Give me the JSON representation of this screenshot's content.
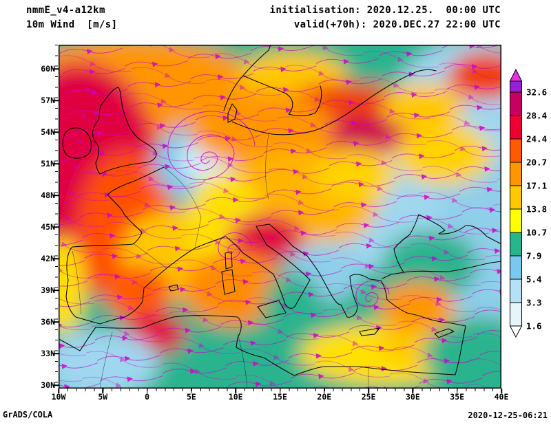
{
  "header": {
    "model": "nmmE_v4-a12km",
    "field": "10m Wind  [m/s]",
    "init": "initialisation: 2020.12.25.  00:00 UTC",
    "valid": "valid(+70h): 2020.DEC.27 22:00 UTC"
  },
  "footer": {
    "left": "GrADS/COLA",
    "right": "2020-12-25-06:21"
  },
  "axes": {
    "lat_labels": [
      "60N",
      "57N",
      "54N",
      "51N",
      "48N",
      "45N",
      "42N",
      "39N",
      "36N",
      "33N",
      "30N"
    ],
    "lon_labels": [
      "10W",
      "5W",
      "0",
      "5E",
      "10E",
      "15E",
      "20E",
      "25E",
      "30E",
      "35E",
      "40E"
    ]
  },
  "colorbar": {
    "labels": [
      "32.6",
      "28.4",
      "24.4",
      "20.7",
      "17.1",
      "13.8",
      "10.7",
      "7.9",
      "5.4",
      "3.3",
      "1.6"
    ],
    "arrow_top_color": "#e632e6",
    "segment_colors": [
      "#961edc",
      "#c80064",
      "#f00032",
      "#ff5a00",
      "#ff9600",
      "#ffc800",
      "#ffff00",
      "#28b48c",
      "#78c8f0",
      "#b4e1f5",
      "#e6f5fb"
    ],
    "arrow_bottom_color": "#ffffff"
  },
  "chart_data": {
    "type": "heatmap",
    "title": "10m Wind [m/s]",
    "model": "nmmE_v4-a12km",
    "initialisation": "2020.12.25. 00:00 UTC",
    "valid": "2020.DEC.27 22:00 UTC",
    "forecast_hour": "+70h",
    "units": "m/s",
    "lon_range": [
      -10,
      40
    ],
    "lat_range": [
      30,
      62.5
    ],
    "lon_ticks": [
      "10W",
      "5W",
      "0",
      "5E",
      "10E",
      "15E",
      "20E",
      "25E",
      "30E",
      "35E",
      "40E"
    ],
    "lat_ticks": [
      "60N",
      "57N",
      "54N",
      "51N",
      "48N",
      "45N",
      "42N",
      "39N",
      "36N",
      "33N",
      "30N"
    ],
    "color_levels_mps": [
      1.6,
      3.3,
      5.4,
      7.9,
      10.7,
      13.8,
      17.1,
      20.7,
      24.4,
      28.4,
      32.6
    ],
    "overlay": "wind streamlines",
    "streamline_color": "#cc00cc",
    "attribution": "GrADS/COLA",
    "created": "2020-12-25-06:21",
    "legend_position": "right",
    "grid": false
  }
}
